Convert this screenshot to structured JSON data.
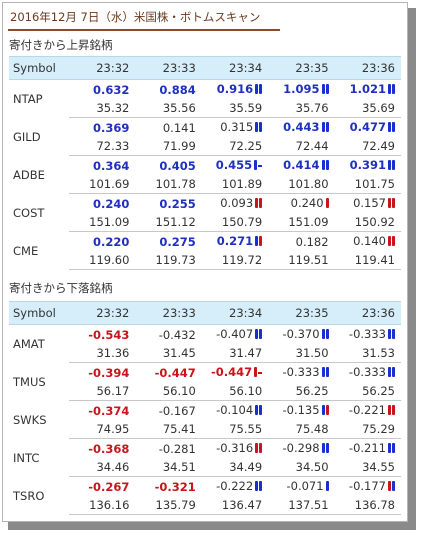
{
  "title": "2016年12月 7日（水）米国株・ボトムスキャン",
  "rising": {
    "heading": "寄付きから上昇銘柄",
    "header": [
      "Symbol",
      "23:32",
      "23:33",
      "23:34",
      "23:35",
      "23:36"
    ],
    "rows": [
      {
        "symbol": "NTAP",
        "changes": [
          "0.632",
          "0.884",
          "0.916",
          "1.095",
          "1.021"
        ],
        "prices": [
          "35.32",
          "35.56",
          "35.59",
          "35.76",
          "35.69"
        ]
      },
      {
        "symbol": "GILD",
        "changes": [
          "0.369",
          "0.141",
          "0.315",
          "0.443",
          "0.477"
        ],
        "prices": [
          "72.33",
          "71.99",
          "72.25",
          "72.44",
          "72.49"
        ]
      },
      {
        "symbol": "ADBE",
        "changes": [
          "0.364",
          "0.405",
          "0.455",
          "0.414",
          "0.391"
        ],
        "prices": [
          "101.69",
          "101.78",
          "101.89",
          "101.80",
          "101.75"
        ]
      },
      {
        "symbol": "COST",
        "changes": [
          "0.240",
          "0.255",
          "0.093",
          "0.240",
          "0.157"
        ],
        "prices": [
          "151.09",
          "151.12",
          "150.79",
          "151.09",
          "150.92"
        ]
      },
      {
        "symbol": "CME",
        "changes": [
          "0.220",
          "0.275",
          "0.271",
          "0.182",
          "0.140"
        ],
        "prices": [
          "119.60",
          "119.73",
          "119.72",
          "119.51",
          "119.41"
        ]
      }
    ]
  },
  "falling": {
    "heading": "寄付きから下落銘柄",
    "header": [
      "Symbol",
      "23:32",
      "23:33",
      "23:34",
      "23:35",
      "23:36"
    ],
    "rows": [
      {
        "symbol": "AMAT",
        "changes": [
          "-0.543",
          "-0.432",
          "-0.407",
          "-0.370",
          "-0.333"
        ],
        "prices": [
          "31.36",
          "31.45",
          "31.47",
          "31.50",
          "31.53"
        ]
      },
      {
        "symbol": "TMUS",
        "changes": [
          "-0.394",
          "-0.447",
          "-0.447",
          "-0.333",
          "-0.333"
        ],
        "prices": [
          "56.17",
          "56.10",
          "56.10",
          "56.25",
          "56.25"
        ]
      },
      {
        "symbol": "SWKS",
        "changes": [
          "-0.374",
          "-0.167",
          "-0.104",
          "-0.135",
          "-0.221"
        ],
        "prices": [
          "74.95",
          "75.41",
          "75.55",
          "75.48",
          "75.29"
        ]
      },
      {
        "symbol": "INTC",
        "changes": [
          "-0.368",
          "-0.281",
          "-0.316",
          "-0.298",
          "-0.211"
        ],
        "prices": [
          "34.46",
          "34.51",
          "34.49",
          "34.50",
          "34.55"
        ]
      },
      {
        "symbol": "TSRO",
        "changes": [
          "-0.267",
          "-0.321",
          "-0.222",
          "-0.071",
          "-0.177"
        ],
        "prices": [
          "136.16",
          "135.79",
          "136.47",
          "137.51",
          "136.78"
        ]
      }
    ]
  },
  "colors": {
    "up": "#1f2fbf",
    "down": "#c8141a",
    "header_bg": "#d6eef9",
    "title": "#6b3a1e"
  }
}
